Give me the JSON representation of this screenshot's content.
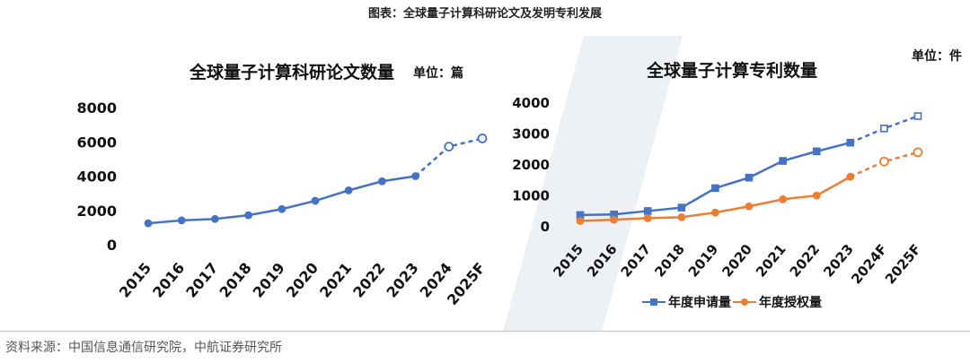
{
  "figure_title": "图表：全球量子计算科研论文及发明专利发展",
  "source": "资料来源：中国信息通信研究院，中航证券研究所",
  "colors": {
    "blue": "#4472c4",
    "orange": "#ed7d31",
    "axis_text": "#111111",
    "rule": "#b8c4d6"
  },
  "chart_data": [
    {
      "type": "line",
      "title": "全球量子计算科研论文数量",
      "unit": "单位：篇",
      "categories": [
        "2015",
        "2016",
        "2017",
        "2018",
        "2019",
        "2020",
        "2021",
        "2022",
        "2023",
        "2024",
        "2025F"
      ],
      "ylim": [
        0,
        8000
      ],
      "yticks": [
        0,
        2000,
        4000,
        6000,
        8000
      ],
      "grid": false,
      "series": [
        {
          "values": [
            1250,
            1420,
            1500,
            1720,
            2080,
            2560,
            3170,
            3700,
            4000,
            5720,
            6200
          ],
          "forecast_start_index": 9,
          "color": "#4472c4"
        }
      ]
    },
    {
      "type": "line",
      "title": "全球量子计算专利数量",
      "unit": "单位：件",
      "categories": [
        "2015",
        "2016",
        "2017",
        "2018",
        "2019",
        "2020",
        "2021",
        "2022",
        "2023",
        "2024F",
        "2025F"
      ],
      "ylim": [
        0,
        4000
      ],
      "yticks": [
        0,
        1000,
        2000,
        3000,
        4000
      ],
      "grid": false,
      "legend_position": "bottom",
      "series": [
        {
          "name": "年度申请量",
          "color": "#4472c4",
          "marker": "square",
          "values": [
            350,
            370,
            480,
            590,
            1220,
            1560,
            2100,
            2410,
            2690,
            3150,
            3550
          ],
          "forecast_start_index": 9
        },
        {
          "name": "年度授权量",
          "color": "#ed7d31",
          "marker": "circle",
          "values": [
            160,
            200,
            250,
            280,
            430,
            630,
            860,
            980,
            1590,
            2080,
            2380
          ],
          "forecast_start_index": 9
        }
      ]
    }
  ]
}
